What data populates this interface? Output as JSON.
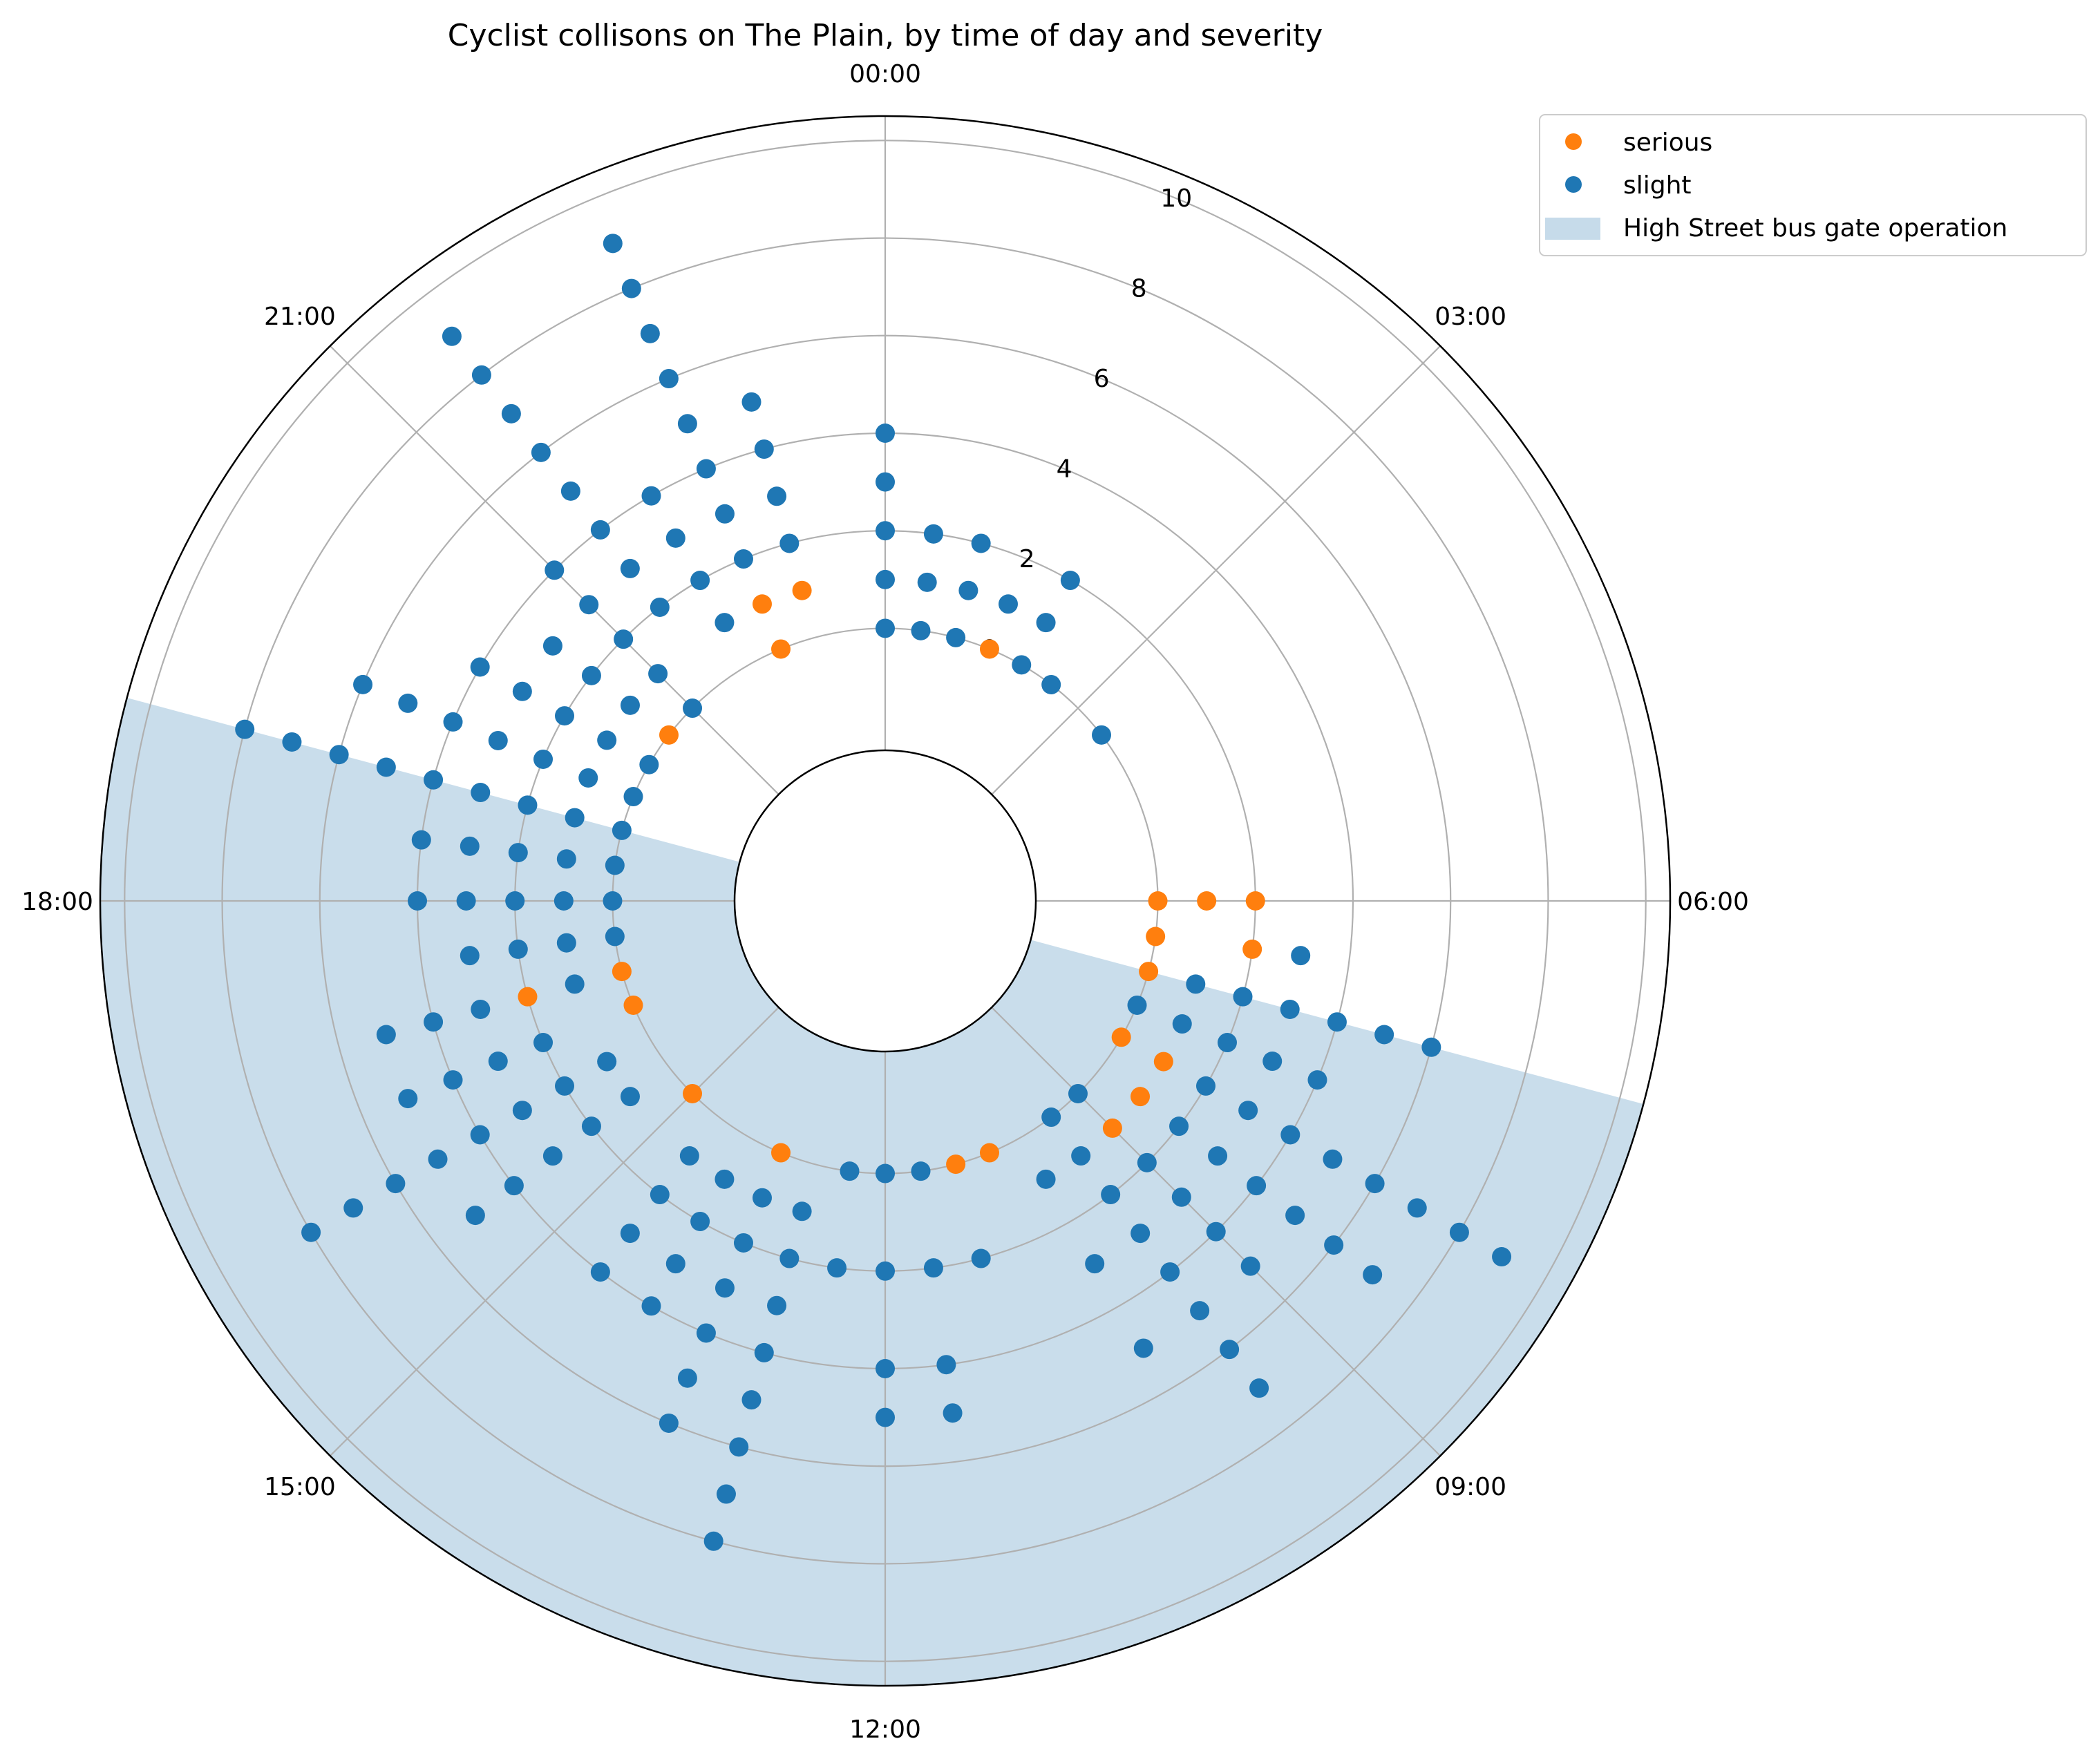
{
  "chart_data": {
    "type": "scatter",
    "polar": true,
    "title": "Cyclist collisons on The Plain, by time of day and severity",
    "angular_axis": {
      "direction": "clockwise",
      "zero_at": "top",
      "tick_labels": [
        "00:00",
        "03:00",
        "06:00",
        "09:00",
        "12:00",
        "15:00",
        "18:00",
        "21:00"
      ]
    },
    "radial_axis": {
      "ticks": [
        0,
        2,
        4,
        6,
        8,
        10
      ],
      "range": [
        -2.5,
        10.5
      ],
      "grid": true
    },
    "legend": {
      "placement": "top-right, outside plot",
      "entries": [
        "serious",
        "slight",
        "High Street bus gate operation"
      ]
    },
    "shaded_band": {
      "name": "High Street bus gate operation",
      "start_time": "07:00",
      "end_time": "19:00",
      "color": "#c6dbea"
    },
    "colors": {
      "serious": "#ff7f0e",
      "slight": "#1f77b4",
      "band": "#c6dbea"
    },
    "series": [
      {
        "name": "serious",
        "color": "#ff7f0e",
        "points": [
          {
            "time": "01:30",
            "count": 0
          },
          {
            "time": "06:00",
            "count": 0
          },
          {
            "time": "06:00",
            "count": 1
          },
          {
            "time": "06:00",
            "count": 2
          },
          {
            "time": "06:30",
            "count": 0
          },
          {
            "time": "06:30",
            "count": 2
          },
          {
            "time": "07:00",
            "count": 0
          },
          {
            "time": "08:00",
            "count": 0
          },
          {
            "time": "08:00",
            "count": 1
          },
          {
            "time": "08:30",
            "count": 1
          },
          {
            "time": "09:00",
            "count": 1
          },
          {
            "time": "10:30",
            "count": 0
          },
          {
            "time": "11:00",
            "count": 0
          },
          {
            "time": "13:30",
            "count": 0
          },
          {
            "time": "15:00",
            "count": 0
          },
          {
            "time": "16:30",
            "count": 0
          },
          {
            "time": "17:00",
            "count": 0
          },
          {
            "time": "17:00",
            "count": 2
          },
          {
            "time": "20:30",
            "count": 0
          },
          {
            "time": "22:30",
            "count": 0
          },
          {
            "time": "22:30",
            "count": 1
          },
          {
            "time": "23:00",
            "count": 1
          }
        ]
      },
      {
        "name": "slight",
        "color": "#1f77b4",
        "points": [
          {
            "time": "00:00",
            "count": 0
          },
          {
            "time": "00:00",
            "count": 1
          },
          {
            "time": "00:00",
            "count": 2
          },
          {
            "time": "00:00",
            "count": 3
          },
          {
            "time": "00:00",
            "count": 4
          },
          {
            "time": "00:30",
            "count": 0
          },
          {
            "time": "00:30",
            "count": 1
          },
          {
            "time": "00:30",
            "count": 2
          },
          {
            "time": "01:00",
            "count": 0
          },
          {
            "time": "01:00",
            "count": 1
          },
          {
            "time": "01:00",
            "count": 2
          },
          {
            "time": "01:30",
            "count": 1
          },
          {
            "time": "02:00",
            "count": 0
          },
          {
            "time": "02:00",
            "count": 1
          },
          {
            "time": "02:00",
            "count": 2
          },
          {
            "time": "02:30",
            "count": 0
          },
          {
            "time": "03:30",
            "count": 0
          },
          {
            "time": "06:30",
            "count": 3
          },
          {
            "time": "07:00",
            "count": 1
          },
          {
            "time": "07:00",
            "count": 2
          },
          {
            "time": "07:00",
            "count": 3
          },
          {
            "time": "07:00",
            "count": 4
          },
          {
            "time": "07:00",
            "count": 5
          },
          {
            "time": "07:00",
            "count": 6
          },
          {
            "time": "07:30",
            "count": 0
          },
          {
            "time": "07:30",
            "count": 1
          },
          {
            "time": "07:30",
            "count": 2
          },
          {
            "time": "07:30",
            "count": 3
          },
          {
            "time": "07:30",
            "count": 4
          },
          {
            "time": "08:00",
            "count": 2
          },
          {
            "time": "08:00",
            "count": 3
          },
          {
            "time": "08:00",
            "count": 4
          },
          {
            "time": "08:00",
            "count": 5
          },
          {
            "time": "08:00",
            "count": 6
          },
          {
            "time": "08:00",
            "count": 7
          },
          {
            "time": "08:00",
            "count": 8
          },
          {
            "time": "08:00",
            "count": 9
          },
          {
            "time": "08:30",
            "count": 2
          },
          {
            "time": "08:30",
            "count": 3
          },
          {
            "time": "08:30",
            "count": 4
          },
          {
            "time": "08:30",
            "count": 5
          },
          {
            "time": "08:30",
            "count": 6
          },
          {
            "time": "08:30",
            "count": 7
          },
          {
            "time": "09:00",
            "count": 0
          },
          {
            "time": "09:00",
            "count": 2
          },
          {
            "time": "09:00",
            "count": 3
          },
          {
            "time": "09:00",
            "count": 4
          },
          {
            "time": "09:00",
            "count": 5
          },
          {
            "time": "09:30",
            "count": 0
          },
          {
            "time": "09:30",
            "count": 1
          },
          {
            "time": "09:30",
            "count": 2
          },
          {
            "time": "09:30",
            "count": 3
          },
          {
            "time": "09:30",
            "count": 4
          },
          {
            "time": "09:30",
            "count": 5
          },
          {
            "time": "09:30",
            "count": 6
          },
          {
            "time": "09:30",
            "count": 7
          },
          {
            "time": "10:00",
            "count": 1
          },
          {
            "time": "10:00",
            "count": 3
          },
          {
            "time": "10:00",
            "count": 5
          },
          {
            "time": "11:00",
            "count": 2
          },
          {
            "time": "11:30",
            "count": 0
          },
          {
            "time": "11:30",
            "count": 2
          },
          {
            "time": "11:30",
            "count": 4
          },
          {
            "time": "11:30",
            "count": 5
          },
          {
            "time": "12:00",
            "count": 0
          },
          {
            "time": "12:00",
            "count": 2
          },
          {
            "time": "12:00",
            "count": 4
          },
          {
            "time": "12:00",
            "count": 5
          },
          {
            "time": "12:30",
            "count": 0
          },
          {
            "time": "12:30",
            "count": 2
          },
          {
            "time": "13:00",
            "count": 1
          },
          {
            "time": "13:00",
            "count": 2
          },
          {
            "time": "13:00",
            "count": 3
          },
          {
            "time": "13:00",
            "count": 4
          },
          {
            "time": "13:00",
            "count": 5
          },
          {
            "time": "13:00",
            "count": 6
          },
          {
            "time": "13:00",
            "count": 7
          },
          {
            "time": "13:00",
            "count": 8
          },
          {
            "time": "13:30",
            "count": 1
          },
          {
            "time": "13:30",
            "count": 2
          },
          {
            "time": "13:30",
            "count": 3
          },
          {
            "time": "13:30",
            "count": 4
          },
          {
            "time": "13:30",
            "count": 5
          },
          {
            "time": "13:30",
            "count": 6
          },
          {
            "time": "14:00",
            "count": 1
          },
          {
            "time": "14:00",
            "count": 2
          },
          {
            "time": "14:00",
            "count": 3
          },
          {
            "time": "14:00",
            "count": 4
          },
          {
            "time": "14:30",
            "count": 1
          },
          {
            "time": "14:30",
            "count": 2
          },
          {
            "time": "14:30",
            "count": 3
          },
          {
            "time": "14:30",
            "count": 4
          },
          {
            "time": "15:30",
            "count": 1
          },
          {
            "time": "15:30",
            "count": 2
          },
          {
            "time": "15:30",
            "count": 3
          },
          {
            "time": "15:30",
            "count": 4
          },
          {
            "time": "15:30",
            "count": 5
          },
          {
            "time": "16:00",
            "count": 1
          },
          {
            "time": "16:00",
            "count": 2
          },
          {
            "time": "16:00",
            "count": 3
          },
          {
            "time": "16:00",
            "count": 4
          },
          {
            "time": "16:00",
            "count": 5
          },
          {
            "time": "16:00",
            "count": 6
          },
          {
            "time": "16:00",
            "count": 7
          },
          {
            "time": "16:00",
            "count": 8
          },
          {
            "time": "16:30",
            "count": 2
          },
          {
            "time": "16:30",
            "count": 3
          },
          {
            "time": "16:30",
            "count": 4
          },
          {
            "time": "16:30",
            "count": 5
          },
          {
            "time": "17:00",
            "count": 1
          },
          {
            "time": "17:00",
            "count": 3
          },
          {
            "time": "17:00",
            "count": 4
          },
          {
            "time": "17:00",
            "count": 5
          },
          {
            "time": "17:30",
            "count": 0
          },
          {
            "time": "17:30",
            "count": 1
          },
          {
            "time": "17:30",
            "count": 2
          },
          {
            "time": "17:30",
            "count": 3
          },
          {
            "time": "18:00",
            "count": 0
          },
          {
            "time": "18:00",
            "count": 1
          },
          {
            "time": "18:00",
            "count": 2
          },
          {
            "time": "18:00",
            "count": 3
          },
          {
            "time": "18:00",
            "count": 4
          },
          {
            "time": "18:30",
            "count": 0
          },
          {
            "time": "18:30",
            "count": 1
          },
          {
            "time": "18:30",
            "count": 2
          },
          {
            "time": "18:30",
            "count": 3
          },
          {
            "time": "18:30",
            "count": 4
          },
          {
            "time": "19:00",
            "count": 0
          },
          {
            "time": "19:00",
            "count": 1
          },
          {
            "time": "19:00",
            "count": 2
          },
          {
            "time": "19:00",
            "count": 3
          },
          {
            "time": "19:00",
            "count": 4
          },
          {
            "time": "19:00",
            "count": 5
          },
          {
            "time": "19:00",
            "count": 6
          },
          {
            "time": "19:00",
            "count": 7
          },
          {
            "time": "19:00",
            "count": 8
          },
          {
            "time": "19:30",
            "count": 0
          },
          {
            "time": "19:30",
            "count": 1
          },
          {
            "time": "19:30",
            "count": 2
          },
          {
            "time": "19:30",
            "count": 3
          },
          {
            "time": "19:30",
            "count": 4
          },
          {
            "time": "19:30",
            "count": 5
          },
          {
            "time": "19:30",
            "count": 6
          },
          {
            "time": "20:00",
            "count": 0
          },
          {
            "time": "20:00",
            "count": 1
          },
          {
            "time": "20:00",
            "count": 2
          },
          {
            "time": "20:00",
            "count": 3
          },
          {
            "time": "20:00",
            "count": 4
          },
          {
            "time": "20:30",
            "count": 1
          },
          {
            "time": "20:30",
            "count": 2
          },
          {
            "time": "20:30",
            "count": 3
          },
          {
            "time": "21:00",
            "count": 0
          },
          {
            "time": "21:00",
            "count": 1
          },
          {
            "time": "21:00",
            "count": 2
          },
          {
            "time": "21:00",
            "count": 3
          },
          {
            "time": "21:00",
            "count": 4
          },
          {
            "time": "21:30",
            "count": 2
          },
          {
            "time": "21:30",
            "count": 3
          },
          {
            "time": "21:30",
            "count": 4
          },
          {
            "time": "21:30",
            "count": 5
          },
          {
            "time": "21:30",
            "count": 6
          },
          {
            "time": "21:30",
            "count": 7
          },
          {
            "time": "21:30",
            "count": 8
          },
          {
            "time": "21:30",
            "count": 9
          },
          {
            "time": "22:00",
            "count": 1
          },
          {
            "time": "22:00",
            "count": 2
          },
          {
            "time": "22:00",
            "count": 3
          },
          {
            "time": "22:00",
            "count": 4
          },
          {
            "time": "22:30",
            "count": 2
          },
          {
            "time": "22:30",
            "count": 3
          },
          {
            "time": "22:30",
            "count": 4
          },
          {
            "time": "22:30",
            "count": 5
          },
          {
            "time": "22:30",
            "count": 6
          },
          {
            "time": "22:30",
            "count": 7
          },
          {
            "time": "22:30",
            "count": 8
          },
          {
            "time": "22:30",
            "count": 9
          },
          {
            "time": "23:00",
            "count": 2
          },
          {
            "time": "23:00",
            "count": 3
          },
          {
            "time": "23:00",
            "count": 4
          },
          {
            "time": "23:00",
            "count": 5
          }
        ]
      }
    ]
  }
}
